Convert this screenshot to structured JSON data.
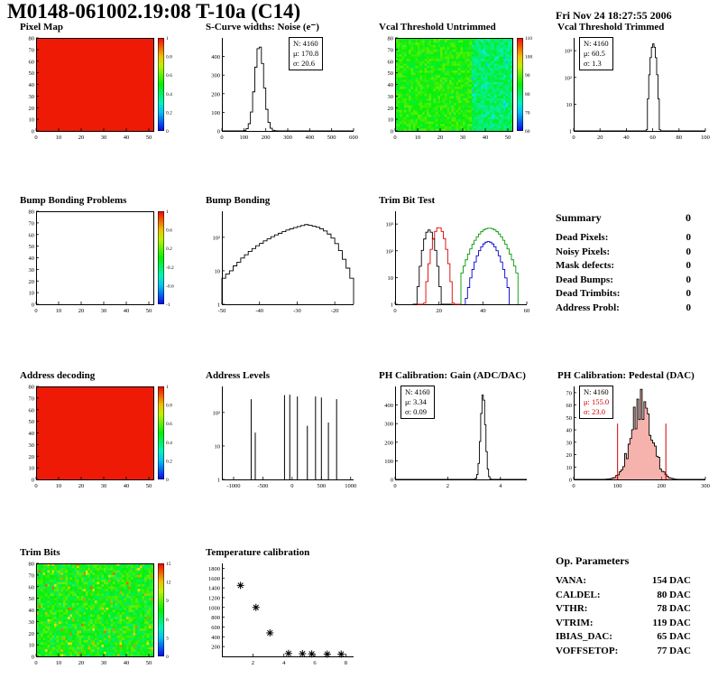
{
  "header": {
    "title": "M0148-061002.19:08 T-10a (C14)",
    "date": "Fri Nov 24 18:27:55 2006"
  },
  "summary": {
    "heading": "Summary",
    "total": "0",
    "rows": [
      {
        "label": "Dead Pixels:",
        "value": "0"
      },
      {
        "label": "Noisy Pixels:",
        "value": "0"
      },
      {
        "label": "Mask defects:",
        "value": "0"
      },
      {
        "label": "Dead Bumps:",
        "value": "0"
      },
      {
        "label": "Dead Trimbits:",
        "value": "0"
      },
      {
        "label": "Address Probl:",
        "value": "0"
      }
    ]
  },
  "op_parameters": {
    "heading": "Op. Parameters",
    "rows": [
      {
        "label": "VANA:",
        "value": "154 DAC"
      },
      {
        "label": "CALDEL:",
        "value": "80 DAC"
      },
      {
        "label": "VTHR:",
        "value": "78 DAC"
      },
      {
        "label": "VTRIM:",
        "value": "119 DAC"
      },
      {
        "label": "IBIAS_DAC:",
        "value": "65 DAC"
      },
      {
        "label": "VOFFSETOP:",
        "value": "77 DAC"
      }
    ]
  },
  "chart_data": [
    {
      "id": "pixel-map",
      "title": "Pixel Map",
      "type": "heatmap",
      "style": "solid",
      "axes": {
        "x": [
          0,
          52
        ],
        "y": [
          0,
          80
        ],
        "xticks": [
          0,
          10,
          20,
          30,
          40,
          50
        ],
        "yticks": [
          0,
          10,
          20,
          30,
          40,
          50,
          60,
          70,
          80
        ]
      },
      "colorbar": {
        "labels": [
          "1",
          "0.8",
          "0.6",
          "0.4",
          "0.2",
          "0"
        ]
      }
    },
    {
      "id": "scurve-noise",
      "title": "S-Curve widths: Noise (e⁻)",
      "type": "hist",
      "axes": {
        "x": [
          0,
          600
        ],
        "y": [
          0,
          500
        ],
        "xticks": [
          0,
          100,
          200,
          300,
          400,
          500,
          600
        ],
        "yticks": [
          0,
          100,
          200,
          300,
          400
        ]
      },
      "series": [
        {
          "color": "#000000",
          "gauss": {
            "mu": 170.8,
            "sigma": 20.6,
            "amp": 460
          },
          "nbins": 60,
          "range": [
            0,
            600
          ]
        }
      ],
      "stats": {
        "lines": [
          "N: 4160",
          "μ: 170.8",
          "σ: 20.6"
        ]
      }
    },
    {
      "id": "vcal-untrimmed",
      "title": "Vcal Threshold Untrimmed",
      "type": "heatmap",
      "style": "noise-untrimmed",
      "axes": {
        "x": [
          0,
          52
        ],
        "y": [
          0,
          80
        ],
        "xticks": [
          0,
          10,
          20,
          30,
          40,
          50
        ],
        "yticks": [
          0,
          10,
          20,
          30,
          40,
          50,
          60,
          70,
          80
        ]
      },
      "colorbar": {
        "labels": [
          "110",
          "100",
          "90",
          "80",
          "70",
          "60"
        ]
      }
    },
    {
      "id": "vcal-trimmed",
      "title": "Vcal Threshold Trimmed",
      "type": "hist",
      "axes": {
        "x": [
          0,
          100
        ],
        "y": [
          1,
          3000
        ],
        "logy": true,
        "xticks": [
          0,
          20,
          40,
          60,
          80,
          100
        ],
        "yticks": [
          1,
          10,
          100,
          1000
        ],
        "ylabels": [
          "1",
          "10",
          "10²",
          "10³"
        ]
      },
      "series": [
        {
          "color": "#000000",
          "gauss": {
            "mu": 60.5,
            "sigma": 1.3,
            "amp": 1800
          },
          "nbins": 100,
          "range": [
            0,
            100
          ]
        }
      ],
      "stats": {
        "lines": [
          "N: 4160",
          "μ: 60.5",
          "σ: 1.3"
        ]
      }
    },
    {
      "id": "bump-problems",
      "title": "Bump Bonding Problems",
      "type": "heatmap",
      "style": "empty",
      "axes": {
        "x": [
          0,
          52
        ],
        "y": [
          0,
          80
        ],
        "xticks": [
          0,
          10,
          20,
          30,
          40,
          50
        ],
        "yticks": [
          0,
          10,
          20,
          30,
          40,
          50,
          60,
          70,
          80
        ]
      },
      "colorbar": {
        "labels": [
          "1",
          "0.6",
          "0.2",
          "-0.2",
          "-0.6",
          "-1"
        ]
      }
    },
    {
      "id": "bump-bonding",
      "title": "Bump Bonding",
      "type": "hist",
      "axes": {
        "x": [
          -50,
          -15
        ],
        "y": [
          1,
          600
        ],
        "logy": true,
        "xticks": [
          -50,
          -40,
          -30,
          -20
        ],
        "yticks": [
          1,
          10,
          100
        ],
        "ylabels": [
          "1",
          "10",
          "10²"
        ]
      },
      "series": [
        {
          "color": "#000000",
          "values": {
            "x0": -50,
            "dx": 1,
            "v": [
              6,
              8,
              10,
              14,
              18,
              24,
              30,
              38,
              46,
              56,
              66,
              78,
              90,
              104,
              118,
              132,
              148,
              165,
              180,
              195,
              210,
              225,
              240,
              228,
              215,
              200,
              180,
              155,
              125,
              95,
              65,
              40,
              22,
              12,
              6
            ]
          }
        }
      ]
    },
    {
      "id": "trim-bit-test",
      "title": "Trim Bit Test",
      "type": "hist",
      "axes": {
        "x": [
          0,
          60
        ],
        "y": [
          1,
          3000
        ],
        "logy": true,
        "xticks": [
          0,
          20,
          40,
          60
        ],
        "yticks": [
          1,
          10,
          100,
          1000
        ],
        "ylabels": [
          "1",
          "10",
          "10²",
          "10³"
        ]
      },
      "series": [
        {
          "color": "#000000",
          "gauss": {
            "mu": 15.5,
            "sigma": 1.6,
            "amp": 600
          },
          "nbins": 18,
          "range": [
            8,
            26
          ]
        },
        {
          "color": "#dd0000",
          "gauss": {
            "mu": 20.0,
            "sigma": 1.8,
            "amp": 750
          },
          "nbins": 20,
          "range": [
            10,
            30
          ]
        },
        {
          "color": "#009900",
          "gauss": {
            "mu": 43.0,
            "sigma": 4.5,
            "amp": 700
          },
          "nbins": 26,
          "range": [
            30,
            56
          ]
        },
        {
          "color": "#0000cc",
          "gauss": {
            "mu": 42.5,
            "sigma": 3.2,
            "amp": 220
          },
          "nbins": 20,
          "range": [
            32,
            52
          ]
        }
      ]
    },
    {
      "id": "address-decoding",
      "title": "Address decoding",
      "type": "heatmap",
      "style": "solid",
      "axes": {
        "x": [
          0,
          52
        ],
        "y": [
          0,
          80
        ],
        "xticks": [
          0,
          10,
          20,
          30,
          40,
          50
        ],
        "yticks": [
          0,
          10,
          20,
          30,
          40,
          50,
          60,
          70,
          80
        ]
      },
      "colorbar": {
        "labels": [
          "1",
          "0.8",
          "0.6",
          "0.4",
          "0.2",
          "0"
        ]
      }
    },
    {
      "id": "address-levels",
      "title": "Address Levels",
      "type": "hist",
      "axes": {
        "x": [
          -1200,
          1050
        ],
        "y": [
          1,
          600
        ],
        "logy": true,
        "xticks": [
          -1000,
          -500,
          0,
          500,
          1000
        ],
        "yticks": [
          1,
          10,
          100
        ],
        "ylabels": [
          "1",
          "10",
          "10²"
        ]
      },
      "series": [
        {
          "color": "#000000",
          "spikes": [
            [
              -700,
              250
            ],
            [
              -630,
              25
            ],
            [
              -130,
              330
            ],
            [
              -40,
              340
            ],
            [
              90,
              300
            ],
            [
              260,
              40
            ],
            [
              400,
              300
            ],
            [
              500,
              280
            ],
            [
              620,
              50
            ],
            [
              760,
              250
            ]
          ]
        }
      ]
    },
    {
      "id": "ph-gain",
      "title": "PH Calibration: Gain (ADC/DAC)",
      "type": "hist",
      "axes": {
        "x": [
          0,
          5
        ],
        "y": [
          0,
          500
        ],
        "xticks": [
          0,
          2,
          4
        ],
        "yticks": [
          0,
          100,
          200,
          300,
          400
        ]
      },
      "series": [
        {
          "color": "#000000",
          "gauss": {
            "mu": 3.34,
            "sigma": 0.09,
            "amp": 460
          },
          "nbins": 100,
          "range": [
            0,
            5
          ]
        }
      ],
      "stats": {
        "lines": [
          "N: 4160",
          "μ: 3.34",
          "σ: 0.09"
        ]
      }
    },
    {
      "id": "ph-pedestal",
      "title": "PH Calibration: Pedestal (DAC)",
      "type": "hist",
      "axes": {
        "x": [
          0,
          300
        ],
        "y": [
          0,
          75
        ],
        "xticks": [
          0,
          100,
          200,
          300
        ],
        "yticks": [
          0,
          10,
          20,
          30,
          40,
          50,
          60,
          70
        ]
      },
      "series": [
        {
          "color": "#000000",
          "fill": "rgba(235,85,70,0.45)",
          "jitter": 0.5,
          "gauss": {
            "mu": 155.0,
            "sigma": 23.0,
            "amp": 62
          },
          "nbins": 75,
          "range": [
            0,
            300
          ]
        }
      ],
      "vlines": [
        {
          "x": 100,
          "h": 45,
          "color": "#cc0000"
        },
        {
          "x": 210,
          "h": 45,
          "color": "#cc0000"
        }
      ],
      "stats": {
        "lines": [
          "N: 4160",
          "μ: 155.0",
          "σ: 23.0"
        ],
        "red_lines": [
          1,
          2
        ]
      }
    },
    {
      "id": "trim-bits",
      "title": "Trim Bits",
      "type": "heatmap",
      "style": "noise-trim",
      "axes": {
        "x": [
          0,
          52
        ],
        "y": [
          0,
          80
        ],
        "xticks": [
          0,
          10,
          20,
          30,
          40,
          50
        ],
        "yticks": [
          0,
          10,
          20,
          30,
          40,
          50,
          60,
          70,
          80
        ]
      },
      "colorbar": {
        "labels": [
          "15",
          "12",
          "9",
          "6",
          "3",
          "0"
        ]
      }
    },
    {
      "id": "temp-calib",
      "title": "Temperature calibration",
      "type": "scatter",
      "axes": {
        "x": [
          0,
          8.5
        ],
        "y": [
          0,
          1900
        ],
        "xticks": [
          2,
          4,
          6,
          8
        ],
        "yticks": [
          200,
          400,
          600,
          800,
          1000,
          1200,
          1400,
          1600,
          1800
        ]
      },
      "points": [
        [
          1.2,
          1450
        ],
        [
          2.2,
          1000
        ],
        [
          3.1,
          480
        ],
        [
          4.3,
          60
        ],
        [
          5.2,
          55
        ],
        [
          5.8,
          50
        ],
        [
          6.8,
          45
        ],
        [
          7.7,
          45
        ]
      ]
    }
  ]
}
